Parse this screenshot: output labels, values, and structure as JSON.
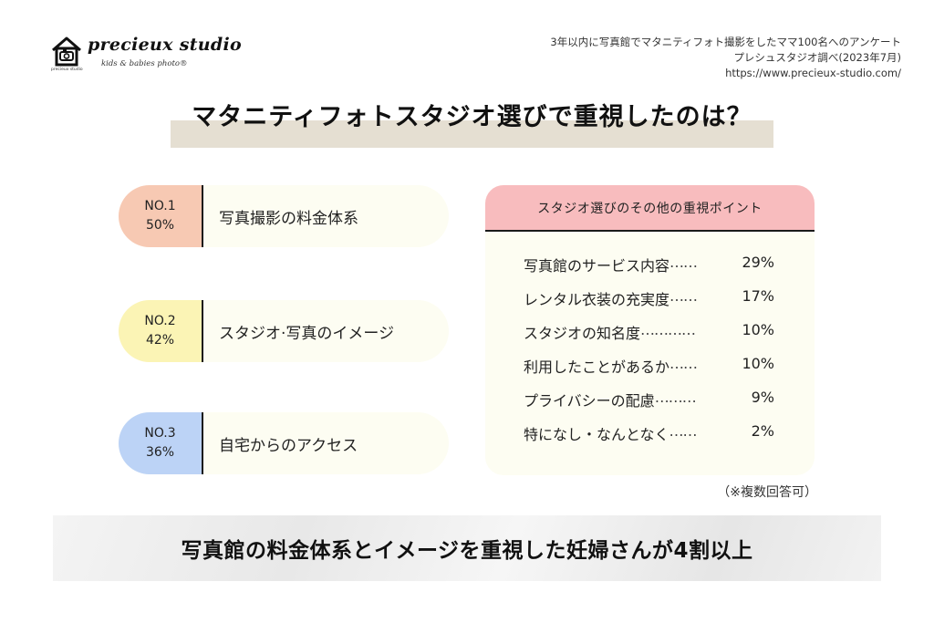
{
  "logo": {
    "name": "precieux studio",
    "tagline": "kids & babies photo®",
    "mini": "precieux studio"
  },
  "source": {
    "line1": "3年以内に写真館でマタニティフォト撮影をしたママ100名へのアンケート",
    "line2": "プレシュスタジオ調べ(2023年7月)",
    "line3": "https://www.precieux-studio.com/"
  },
  "title": "マタニティフォトスタジオ選びで重視したのは？",
  "ranking": [
    {
      "rank": "NO.1",
      "percent": "50%",
      "label": "写真撮影の料金体系"
    },
    {
      "rank": "NO.2",
      "percent": "42%",
      "label": "スタジオ·写真のイメージ"
    },
    {
      "rank": "NO.3",
      "percent": "36%",
      "label": "自宅からのアクセス"
    }
  ],
  "others": {
    "header": "スタジオ選びのその他の重視ポイント",
    "items": [
      {
        "label": "写真館のサービス内容",
        "dots": "……",
        "value": "29%"
      },
      {
        "label": "レンタル衣装の充実度",
        "dots": "……",
        "value": "17%"
      },
      {
        "label": "スタジオの知名度",
        "dots": "…………",
        "value": "10%"
      },
      {
        "label": "利用したことがあるか",
        "dots": "……",
        "value": "10%"
      },
      {
        "label": "プライバシーの配慮",
        "dots": "………",
        "value": "9%"
      },
      {
        "label": "特になし・なんとなく",
        "dots": "……",
        "value": "2%"
      }
    ]
  },
  "note": "（※複数回答可）",
  "banner": "写真館の料金体系とイメージを重視した妊婦さんが4割以上",
  "colors": {
    "rank1": "#f7c9b3",
    "rank2": "#fbf4b5",
    "rank3": "#bcd3f6",
    "others_header": "#f8bcbe",
    "title_band": "#e5dfd2",
    "panel_bg": "#fdfdf2"
  },
  "icons": {
    "logo": "house-icon"
  }
}
